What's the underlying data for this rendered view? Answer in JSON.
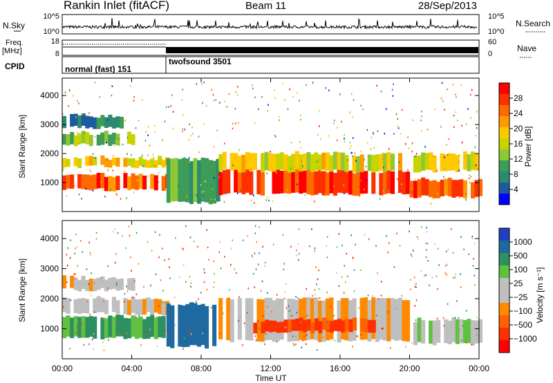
{
  "header": {
    "radar": "Rankin Inlet (fitACF)",
    "beam": "Beam 11",
    "date": "28/Sep/2013"
  },
  "top_panels": {
    "nsky_label": "N.Sky",
    "nsearch_label": "N.Search",
    "nsky_ticks": [
      "10^5",
      "10^0"
    ],
    "freq_label": "Freq.",
    "freq_unit": "[MHz]",
    "freq_ticks": [
      "18",
      "8"
    ],
    "nave_label": "Nave",
    "nave_ticks": [
      "60",
      "0"
    ],
    "cpid_label": "CPID",
    "modes": [
      {
        "label": "normal (fast) 151",
        "start_hour": 0,
        "end_hour": 6
      },
      {
        "label": "twofsound 3501",
        "start_hour": 6,
        "end_hour": 24
      }
    ]
  },
  "colorbars": {
    "power": {
      "label": "Power [dB]",
      "ticks": [
        "28",
        "24",
        "20",
        "16",
        "12",
        "8",
        "4"
      ],
      "colors": [
        "#ff0000",
        "#ff3000",
        "#ff6a00",
        "#ff9a00",
        "#ffc800",
        "#c8d400",
        "#8cc838",
        "#3c9c58",
        "#2c8a70",
        "#1e5aa0",
        "#0000ff"
      ]
    },
    "velocity": {
      "label": "Velocity [m s⁻¹]",
      "ticks": [
        "1000",
        "500",
        "100",
        "25",
        "−25",
        "−100",
        "−500",
        "−1000"
      ],
      "colors": [
        "#2040c0",
        "#1e6aa0",
        "#2e9060",
        "#60c040",
        "#bfbfbf",
        "#bfbfbf",
        "#ff8a00",
        "#ff6000",
        "#ff3000",
        "#ff0000"
      ]
    }
  },
  "chart_data": [
    {
      "type": "heatmap",
      "name": "power",
      "ylabel": "Slant Range [km]",
      "ylim": [
        0,
        4600
      ],
      "xlim": [
        0,
        24
      ],
      "yticks": [
        1000,
        2000,
        3000,
        4000
      ],
      "xticks": [
        "00:00",
        "04:00",
        "08:00",
        "12:00",
        "16:00",
        "20:00",
        "00:00"
      ],
      "bands": [
        {
          "start": 0,
          "end": 6,
          "lo": 750,
          "hi": 1250,
          "level": 26
        },
        {
          "start": 0,
          "end": 6,
          "lo": 1550,
          "hi": 1850,
          "level": 18
        },
        {
          "start": 0,
          "end": 4,
          "lo": 2300,
          "hi": 2700,
          "level": 12
        },
        {
          "start": 0,
          "end": 3.5,
          "lo": 2900,
          "hi": 3300,
          "level": 6
        },
        {
          "start": 6,
          "end": 9,
          "lo": 300,
          "hi": 1800,
          "level": 9
        },
        {
          "start": 9,
          "end": 20,
          "lo": 600,
          "hi": 1400,
          "level": 27
        },
        {
          "start": 9,
          "end": 24,
          "lo": 1400,
          "hi": 2000,
          "level": 16
        },
        {
          "start": 20,
          "end": 24,
          "lo": 500,
          "hi": 1100,
          "level": 25
        }
      ]
    },
    {
      "type": "heatmap",
      "name": "velocity",
      "ylabel": "Slant Range [km]",
      "ylim": [
        0,
        4600
      ],
      "xlim": [
        0,
        24
      ],
      "yticks": [
        1000,
        2000,
        3000,
        4000
      ],
      "xticks": [
        "00:00",
        "04:00",
        "08:00",
        "12:00",
        "16:00",
        "20:00",
        "00:00"
      ],
      "xlabel": "Time UT",
      "bands": [
        {
          "start": 0,
          "end": 6,
          "lo": 700,
          "hi": 1400,
          "level": 280
        },
        {
          "start": 0,
          "end": 6,
          "lo": 1500,
          "hi": 2000,
          "level": 0
        },
        {
          "start": 0,
          "end": 4,
          "lo": 2300,
          "hi": 2700,
          "level": 0
        },
        {
          "start": 6,
          "end": 9,
          "lo": 400,
          "hi": 1800,
          "level": 600
        },
        {
          "start": 9,
          "end": 20,
          "lo": 600,
          "hi": 2000,
          "level": 0
        },
        {
          "start": 11,
          "end": 18,
          "lo": 900,
          "hi": 1300,
          "level": -300
        },
        {
          "start": 20,
          "end": 24,
          "lo": 500,
          "hi": 1300,
          "level": 120
        }
      ]
    }
  ]
}
